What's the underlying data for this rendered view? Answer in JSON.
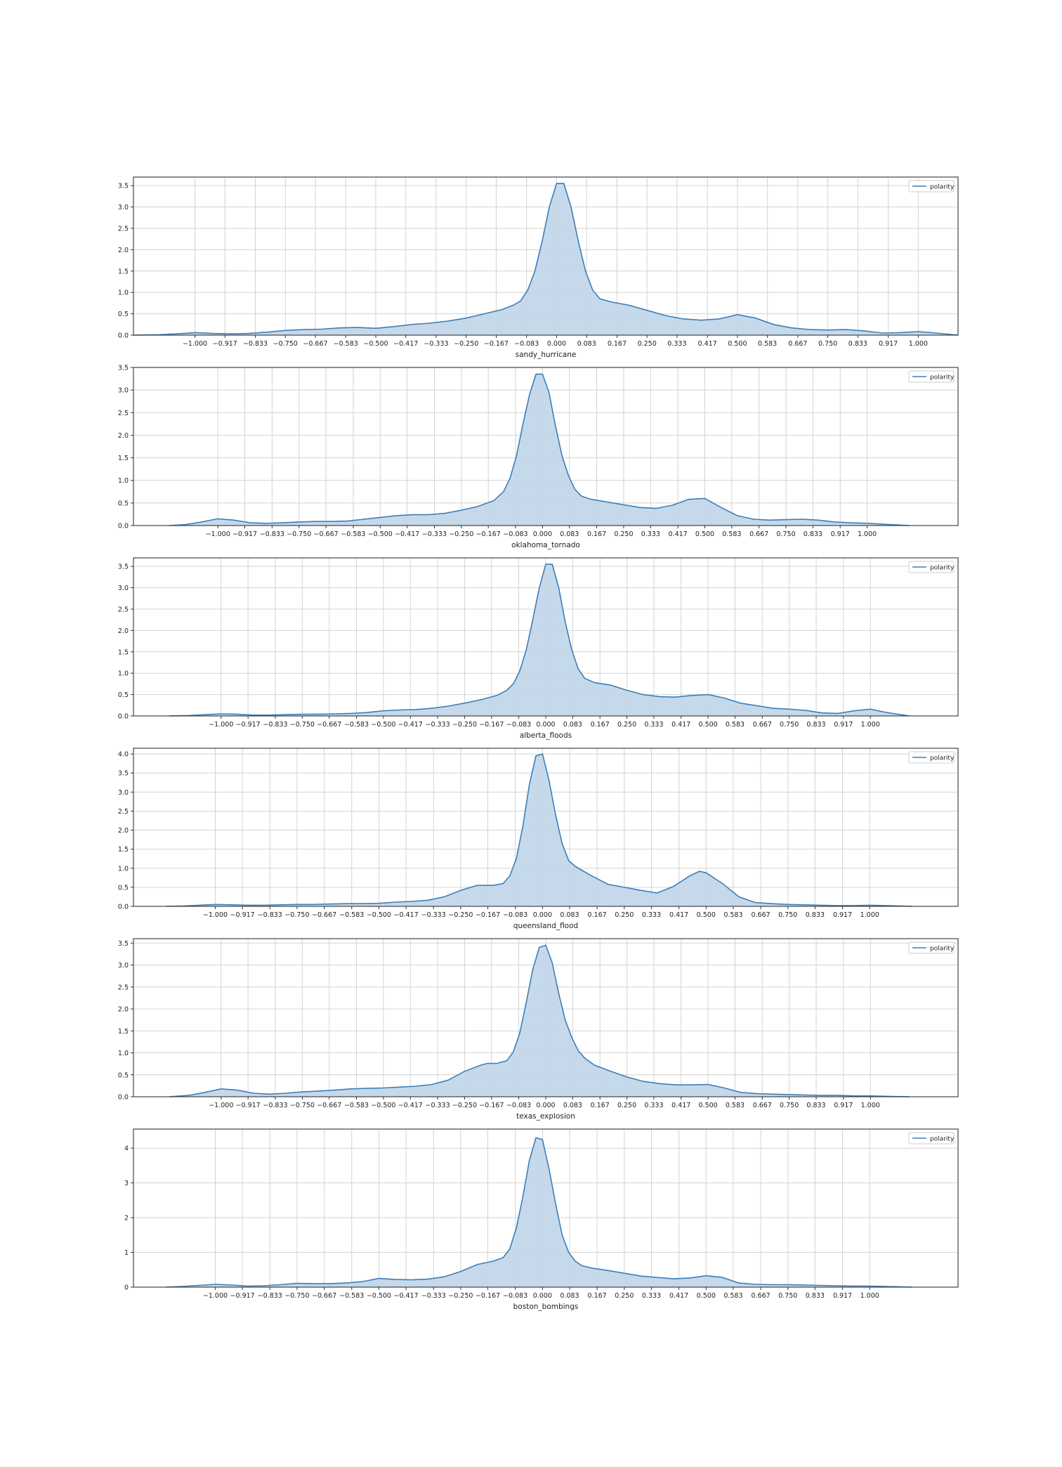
{
  "legend_label": "polarity",
  "colors": {
    "line": "#3a7fba",
    "fill": "#c3d7e9",
    "grid": "#d3d3d3",
    "frame": "#333333"
  },
  "chart_data": [
    {
      "type": "area",
      "xlabel": "sandy_hurricane",
      "xticks": [
        "-1.000",
        "-0.917",
        "-0.833",
        "-0.750",
        "-0.667",
        "-0.583",
        "-0.500",
        "-0.417",
        "-0.333",
        "-0.250",
        "-0.167",
        "-0.083",
        "0.000",
        "0.083",
        "0.167",
        "0.250",
        "0.333",
        "0.417",
        "0.500",
        "0.583",
        "0.667",
        "0.750",
        "0.833",
        "0.917",
        "1.000"
      ],
      "yticks": [
        "0.0",
        "0.5",
        "1.0",
        "1.5",
        "2.0",
        "2.5",
        "3.0",
        "3.5"
      ],
      "xlim": [
        -1.17,
        1.11
      ],
      "ylim": [
        0,
        3.7
      ],
      "xdomain": [
        -1.17,
        1.11
      ],
      "series": [
        {
          "name": "polarity",
          "x": [
            -1.17,
            -1.1,
            -1.05,
            -1.0,
            -0.95,
            -0.9,
            -0.85,
            -0.8,
            -0.75,
            -0.7,
            -0.65,
            -0.6,
            -0.55,
            -0.5,
            -0.45,
            -0.4,
            -0.35,
            -0.3,
            -0.25,
            -0.2,
            -0.15,
            -0.12,
            -0.1,
            -0.08,
            -0.06,
            -0.04,
            -0.02,
            0.0,
            0.02,
            0.04,
            0.06,
            0.08,
            0.1,
            0.12,
            0.15,
            0.2,
            0.25,
            0.3,
            0.35,
            0.4,
            0.45,
            0.5,
            0.55,
            0.6,
            0.65,
            0.7,
            0.75,
            0.8,
            0.85,
            0.9,
            0.95,
            1.0,
            1.05,
            1.11
          ],
          "y": [
            0.0,
            0.01,
            0.03,
            0.06,
            0.04,
            0.03,
            0.04,
            0.07,
            0.11,
            0.13,
            0.14,
            0.17,
            0.18,
            0.16,
            0.2,
            0.25,
            0.28,
            0.33,
            0.4,
            0.5,
            0.6,
            0.7,
            0.8,
            1.05,
            1.5,
            2.2,
            3.0,
            3.55,
            3.55,
            3.0,
            2.2,
            1.5,
            1.05,
            0.85,
            0.78,
            0.7,
            0.58,
            0.46,
            0.38,
            0.35,
            0.38,
            0.48,
            0.4,
            0.25,
            0.17,
            0.13,
            0.12,
            0.13,
            0.1,
            0.05,
            0.06,
            0.08,
            0.05,
            0.0
          ]
        }
      ]
    },
    {
      "type": "area",
      "xlabel": "oklahoma_tornado",
      "xticks": [
        "-1.000",
        "-0.917",
        "-0.833",
        "-0.750",
        "-0.667",
        "-0.583",
        "-0.500",
        "-0.417",
        "-0.333",
        "-0.250",
        "-0.167",
        "-0.083",
        "0.000",
        "0.083",
        "0.167",
        "0.250",
        "0.333",
        "0.417",
        "0.500",
        "0.583",
        "0.667",
        "0.750",
        "0.833",
        "0.917",
        "1.000"
      ],
      "yticks": [
        "0.0",
        "0.5",
        "1.0",
        "1.5",
        "2.0",
        "2.5",
        "3.0",
        "3.5"
      ],
      "xlim": [
        -1.26,
        1.28
      ],
      "ylim": [
        0,
        3.5
      ],
      "xdomain": [
        -1.15,
        1.13
      ],
      "series": [
        {
          "name": "polarity",
          "x": [
            -1.15,
            -1.1,
            -1.05,
            -1.0,
            -0.95,
            -0.9,
            -0.85,
            -0.8,
            -0.75,
            -0.7,
            -0.65,
            -0.6,
            -0.55,
            -0.5,
            -0.45,
            -0.4,
            -0.35,
            -0.3,
            -0.25,
            -0.2,
            -0.15,
            -0.12,
            -0.1,
            -0.08,
            -0.06,
            -0.04,
            -0.02,
            0.0,
            0.02,
            0.04,
            0.06,
            0.08,
            0.1,
            0.12,
            0.15,
            0.2,
            0.25,
            0.3,
            0.35,
            0.4,
            0.45,
            0.5,
            0.55,
            0.6,
            0.65,
            0.7,
            0.75,
            0.8,
            0.85,
            0.9,
            0.95,
            1.0,
            1.05,
            1.13
          ],
          "y": [
            0.0,
            0.02,
            0.08,
            0.15,
            0.12,
            0.06,
            0.05,
            0.06,
            0.08,
            0.09,
            0.09,
            0.1,
            0.14,
            0.18,
            0.22,
            0.24,
            0.24,
            0.27,
            0.34,
            0.42,
            0.55,
            0.75,
            1.05,
            1.55,
            2.25,
            2.9,
            3.35,
            3.35,
            2.95,
            2.2,
            1.55,
            1.1,
            0.8,
            0.65,
            0.58,
            0.52,
            0.46,
            0.4,
            0.38,
            0.45,
            0.58,
            0.6,
            0.4,
            0.22,
            0.14,
            0.12,
            0.13,
            0.14,
            0.12,
            0.08,
            0.06,
            0.05,
            0.03,
            0.0
          ]
        }
      ]
    },
    {
      "type": "area",
      "xlabel": "alberta_floods",
      "xticks": [
        "-1.000",
        "-0.917",
        "-0.833",
        "-0.750",
        "-0.667",
        "-0.583",
        "-0.500",
        "-0.417",
        "-0.333",
        "-0.250",
        "-0.167",
        "-0.083",
        "0.000",
        "0.083",
        "0.167",
        "0.250",
        "0.333",
        "0.417",
        "0.500",
        "0.583",
        "0.667",
        "0.750",
        "0.833",
        "0.917",
        "1.000"
      ],
      "yticks": [
        "0.0",
        "0.5",
        "1.0",
        "1.5",
        "2.0",
        "2.5",
        "3.0",
        "3.5"
      ],
      "xlim": [
        -1.27,
        1.27
      ],
      "ylim": [
        0,
        3.7
      ],
      "xdomain": [
        -1.16,
        1.12
      ],
      "series": [
        {
          "name": "polarity",
          "x": [
            -1.16,
            -1.1,
            -1.05,
            -1.0,
            -0.95,
            -0.9,
            -0.85,
            -0.8,
            -0.75,
            -0.7,
            -0.65,
            -0.6,
            -0.55,
            -0.5,
            -0.45,
            -0.4,
            -0.35,
            -0.3,
            -0.25,
            -0.2,
            -0.15,
            -0.12,
            -0.1,
            -0.08,
            -0.06,
            -0.04,
            -0.02,
            0.0,
            0.02,
            0.04,
            0.06,
            0.08,
            0.1,
            0.12,
            0.15,
            0.2,
            0.25,
            0.3,
            0.35,
            0.4,
            0.45,
            0.5,
            0.55,
            0.6,
            0.65,
            0.7,
            0.75,
            0.8,
            0.85,
            0.9,
            0.95,
            1.0,
            1.05,
            1.12
          ],
          "y": [
            0.0,
            0.01,
            0.03,
            0.05,
            0.04,
            0.02,
            0.02,
            0.03,
            0.04,
            0.04,
            0.05,
            0.06,
            0.08,
            0.12,
            0.14,
            0.15,
            0.18,
            0.23,
            0.3,
            0.38,
            0.48,
            0.6,
            0.75,
            1.05,
            1.55,
            2.25,
            3.0,
            3.55,
            3.55,
            3.0,
            2.2,
            1.55,
            1.1,
            0.88,
            0.78,
            0.72,
            0.6,
            0.5,
            0.45,
            0.44,
            0.48,
            0.5,
            0.42,
            0.3,
            0.24,
            0.18,
            0.16,
            0.13,
            0.07,
            0.06,
            0.12,
            0.16,
            0.08,
            0.0
          ]
        }
      ]
    },
    {
      "type": "area",
      "xlabel": "queensland_flood",
      "xticks": [
        "-1.000",
        "-0.917",
        "-0.833",
        "-0.750",
        "-0.667",
        "-0.583",
        "-0.500",
        "-0.417",
        "-0.333",
        "-0.250",
        "-0.167",
        "-0.083",
        "0.000",
        "0.083",
        "0.167",
        "0.250",
        "0.333",
        "0.417",
        "0.500",
        "0.583",
        "0.667",
        "0.750",
        "0.833",
        "0.917",
        "1.000"
      ],
      "yticks": [
        "0.0",
        "0.5",
        "1.0",
        "1.5",
        "2.0",
        "2.5",
        "3.0",
        "3.5",
        "4.0"
      ],
      "xlim": [
        -1.25,
        1.27
      ],
      "ylim": [
        0,
        4.15
      ],
      "xdomain": [
        -1.15,
        1.13
      ],
      "series": [
        {
          "name": "polarity",
          "x": [
            -1.15,
            -1.1,
            -1.05,
            -1.0,
            -0.95,
            -0.9,
            -0.85,
            -0.8,
            -0.75,
            -0.7,
            -0.65,
            -0.6,
            -0.55,
            -0.5,
            -0.45,
            -0.4,
            -0.35,
            -0.3,
            -0.25,
            -0.2,
            -0.15,
            -0.12,
            -0.1,
            -0.08,
            -0.06,
            -0.04,
            -0.02,
            0.0,
            0.02,
            0.04,
            0.06,
            0.08,
            0.1,
            0.12,
            0.15,
            0.2,
            0.25,
            0.3,
            0.35,
            0.4,
            0.45,
            0.48,
            0.5,
            0.55,
            0.6,
            0.65,
            0.7,
            0.75,
            0.8,
            0.85,
            0.9,
            0.95,
            1.0,
            1.05,
            1.13
          ],
          "y": [
            0.0,
            0.01,
            0.03,
            0.05,
            0.04,
            0.03,
            0.03,
            0.04,
            0.05,
            0.05,
            0.06,
            0.07,
            0.07,
            0.08,
            0.11,
            0.13,
            0.16,
            0.25,
            0.42,
            0.55,
            0.55,
            0.6,
            0.8,
            1.25,
            2.1,
            3.2,
            3.95,
            4.0,
            3.3,
            2.4,
            1.65,
            1.2,
            1.05,
            0.95,
            0.8,
            0.58,
            0.5,
            0.42,
            0.35,
            0.52,
            0.8,
            0.92,
            0.88,
            0.6,
            0.25,
            0.1,
            0.07,
            0.05,
            0.04,
            0.03,
            0.02,
            0.02,
            0.03,
            0.02,
            0.0
          ]
        }
      ]
    },
    {
      "type": "area",
      "xlabel": "texas_explosion",
      "xticks": [
        "-1.000",
        "-0.917",
        "-0.833",
        "-0.750",
        "-0.667",
        "-0.583",
        "-0.500",
        "-0.417",
        "-0.333",
        "-0.250",
        "-0.167",
        "-0.083",
        "0.000",
        "0.083",
        "0.167",
        "0.250",
        "0.333",
        "0.417",
        "0.500",
        "0.583",
        "0.667",
        "0.750",
        "0.833",
        "0.917",
        "1.000"
      ],
      "yticks": [
        "0.0",
        "0.5",
        "1.0",
        "1.5",
        "2.0",
        "2.5",
        "3.0",
        "3.5"
      ],
      "xlim": [
        -1.27,
        1.27
      ],
      "ylim": [
        0,
        3.6
      ],
      "xdomain": [
        -1.16,
        1.12
      ],
      "series": [
        {
          "name": "polarity",
          "x": [
            -1.16,
            -1.1,
            -1.05,
            -1.0,
            -0.95,
            -0.9,
            -0.85,
            -0.8,
            -0.75,
            -0.7,
            -0.65,
            -0.6,
            -0.55,
            -0.5,
            -0.45,
            -0.4,
            -0.35,
            -0.3,
            -0.25,
            -0.2,
            -0.18,
            -0.15,
            -0.12,
            -0.1,
            -0.08,
            -0.06,
            -0.04,
            -0.02,
            0.0,
            0.02,
            0.04,
            0.06,
            0.08,
            0.1,
            0.12,
            0.15,
            0.2,
            0.25,
            0.3,
            0.35,
            0.4,
            0.45,
            0.5,
            0.55,
            0.6,
            0.65,
            0.7,
            0.75,
            0.8,
            0.85,
            0.9,
            0.95,
            1.0,
            1.05,
            1.12
          ],
          "y": [
            0.0,
            0.03,
            0.1,
            0.18,
            0.15,
            0.08,
            0.06,
            0.08,
            0.11,
            0.13,
            0.15,
            0.18,
            0.19,
            0.2,
            0.22,
            0.24,
            0.28,
            0.38,
            0.58,
            0.72,
            0.76,
            0.76,
            0.82,
            1.02,
            1.45,
            2.15,
            2.9,
            3.4,
            3.45,
            3.05,
            2.35,
            1.75,
            1.35,
            1.05,
            0.88,
            0.72,
            0.58,
            0.45,
            0.35,
            0.3,
            0.27,
            0.27,
            0.28,
            0.2,
            0.1,
            0.07,
            0.06,
            0.05,
            0.04,
            0.03,
            0.03,
            0.02,
            0.02,
            0.01,
            0.0
          ]
        }
      ]
    },
    {
      "type": "area",
      "xlabel": "boston_bombings",
      "xticks": [
        "-1.000",
        "-0.917",
        "-0.833",
        "-0.750",
        "-0.667",
        "-0.583",
        "-0.500",
        "-0.417",
        "-0.333",
        "-0.250",
        "-0.167",
        "-0.083",
        "0.000",
        "0.083",
        "0.167",
        "0.250",
        "0.333",
        "0.417",
        "0.500",
        "0.583",
        "0.667",
        "0.750",
        "0.833",
        "0.917",
        "1.000"
      ],
      "yticks": [
        "0",
        "1",
        "2",
        "3",
        "4"
      ],
      "xlim": [
        -1.25,
        1.27
      ],
      "ylim": [
        0,
        4.55
      ],
      "xdomain": [
        -1.15,
        1.13
      ],
      "series": [
        {
          "name": "polarity",
          "x": [
            -1.15,
            -1.1,
            -1.05,
            -1.0,
            -0.95,
            -0.9,
            -0.85,
            -0.8,
            -0.75,
            -0.7,
            -0.65,
            -0.6,
            -0.55,
            -0.5,
            -0.45,
            -0.4,
            -0.35,
            -0.3,
            -0.25,
            -0.2,
            -0.15,
            -0.12,
            -0.1,
            -0.08,
            -0.06,
            -0.04,
            -0.02,
            0.0,
            0.02,
            0.04,
            0.06,
            0.08,
            0.1,
            0.12,
            0.15,
            0.2,
            0.25,
            0.3,
            0.35,
            0.4,
            0.45,
            0.5,
            0.55,
            0.6,
            0.65,
            0.7,
            0.75,
            0.8,
            0.85,
            0.9,
            0.95,
            1.0,
            1.05,
            1.13
          ],
          "y": [
            0.0,
            0.02,
            0.05,
            0.08,
            0.06,
            0.03,
            0.04,
            0.07,
            0.11,
            0.1,
            0.1,
            0.12,
            0.16,
            0.25,
            0.22,
            0.21,
            0.23,
            0.3,
            0.45,
            0.65,
            0.75,
            0.85,
            1.1,
            1.7,
            2.6,
            3.65,
            4.3,
            4.25,
            3.4,
            2.4,
            1.5,
            1.0,
            0.75,
            0.62,
            0.55,
            0.48,
            0.4,
            0.32,
            0.28,
            0.24,
            0.26,
            0.33,
            0.28,
            0.12,
            0.08,
            0.07,
            0.07,
            0.06,
            0.05,
            0.04,
            0.03,
            0.03,
            0.02,
            0.0
          ]
        }
      ]
    }
  ]
}
